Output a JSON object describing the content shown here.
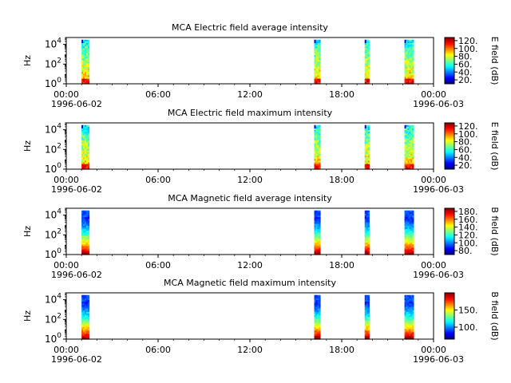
{
  "chart_data": [
    {
      "type": "heatmap",
      "title": "MCA  Electric field average intensity",
      "ylabel": "Hz",
      "yscale": "log",
      "ylim": [
        1,
        50000
      ],
      "y_tick_labels": [
        "10^0",
        "10^2",
        "10^4"
      ],
      "x_tick_labels": [
        "00:00",
        "06:00",
        "12:00",
        "18:00",
        "00:00"
      ],
      "x_date_start": "1996-06-02",
      "x_date_end": "1996-06-03",
      "colorbar": {
        "label": "E field (dB)",
        "range": [
          10,
          128
        ],
        "ticks": [
          "20.",
          "40.",
          "60.",
          "80.",
          "100.",
          "120."
        ],
        "tick_values": [
          20,
          40,
          60,
          80,
          100,
          120
        ]
      },
      "data_intervals_hours": [
        [
          1.0,
          1.5
        ],
        [
          16.2,
          16.6
        ],
        [
          19.5,
          19.8
        ],
        [
          22.1,
          22.7
        ]
      ],
      "scheme": "electric",
      "colormap": "jet"
    },
    {
      "type": "heatmap",
      "title": "MCA  Electric field maximum intensity",
      "ylabel": "Hz",
      "yscale": "log",
      "ylim": [
        1,
        50000
      ],
      "y_tick_labels": [
        "10^0",
        "10^2",
        "10^4"
      ],
      "x_tick_labels": [
        "00:00",
        "06:00",
        "12:00",
        "18:00",
        "00:00"
      ],
      "x_date_start": "1996-06-02",
      "x_date_end": "1996-06-03",
      "colorbar": {
        "label": "E field (dB)",
        "range": [
          10,
          128
        ],
        "ticks": [
          "20.",
          "40.",
          "60.",
          "80.",
          "100.",
          "120."
        ],
        "tick_values": [
          20,
          40,
          60,
          80,
          100,
          120
        ]
      },
      "data_intervals_hours": [
        [
          1.0,
          1.5
        ],
        [
          16.2,
          16.6
        ],
        [
          19.5,
          19.8
        ],
        [
          22.1,
          22.7
        ]
      ],
      "scheme": "electric",
      "colormap": "jet"
    },
    {
      "type": "heatmap",
      "title": "MCA  Magnetic field average intensity",
      "ylabel": "Hz",
      "yscale": "log",
      "ylim": [
        1,
        50000
      ],
      "y_tick_labels": [
        "10^0",
        "10^2",
        "10^4"
      ],
      "x_tick_labels": [
        "00:00",
        "06:00",
        "12:00",
        "18:00",
        "00:00"
      ],
      "x_date_start": "1996-06-02",
      "x_date_end": "1996-06-03",
      "colorbar": {
        "label": "B field (dB)",
        "range": [
          70,
          188
        ],
        "ticks": [
          "80.",
          "100.",
          "120.",
          "140.",
          "160.",
          "180."
        ],
        "tick_values": [
          80,
          100,
          120,
          140,
          160,
          180
        ]
      },
      "data_intervals_hours": [
        [
          1.0,
          1.5
        ],
        [
          16.2,
          16.6
        ],
        [
          19.5,
          19.8
        ],
        [
          22.1,
          22.7
        ]
      ],
      "scheme": "magnetic",
      "colormap": "jet"
    },
    {
      "type": "heatmap",
      "title": "MCA  Magnetic field maximum intensity",
      "ylabel": "Hz",
      "yscale": "log",
      "ylim": [
        1,
        50000
      ],
      "y_tick_labels": [
        "10^0",
        "10^2",
        "10^4"
      ],
      "x_tick_labels": [
        "00:00",
        "06:00",
        "12:00",
        "18:00",
        "00:00"
      ],
      "x_date_start": "1996-06-02",
      "x_date_end": "1996-06-03",
      "colorbar": {
        "label": "B field (dB)",
        "range": [
          65,
          200
        ],
        "ticks": [
          "100.",
          "150."
        ],
        "tick_values": [
          100,
          150
        ]
      },
      "data_intervals_hours": [
        [
          1.0,
          1.5
        ],
        [
          16.2,
          16.6
        ],
        [
          19.5,
          19.8
        ],
        [
          22.1,
          22.7
        ]
      ],
      "scheme": "magnetic",
      "colormap": "jet"
    }
  ]
}
